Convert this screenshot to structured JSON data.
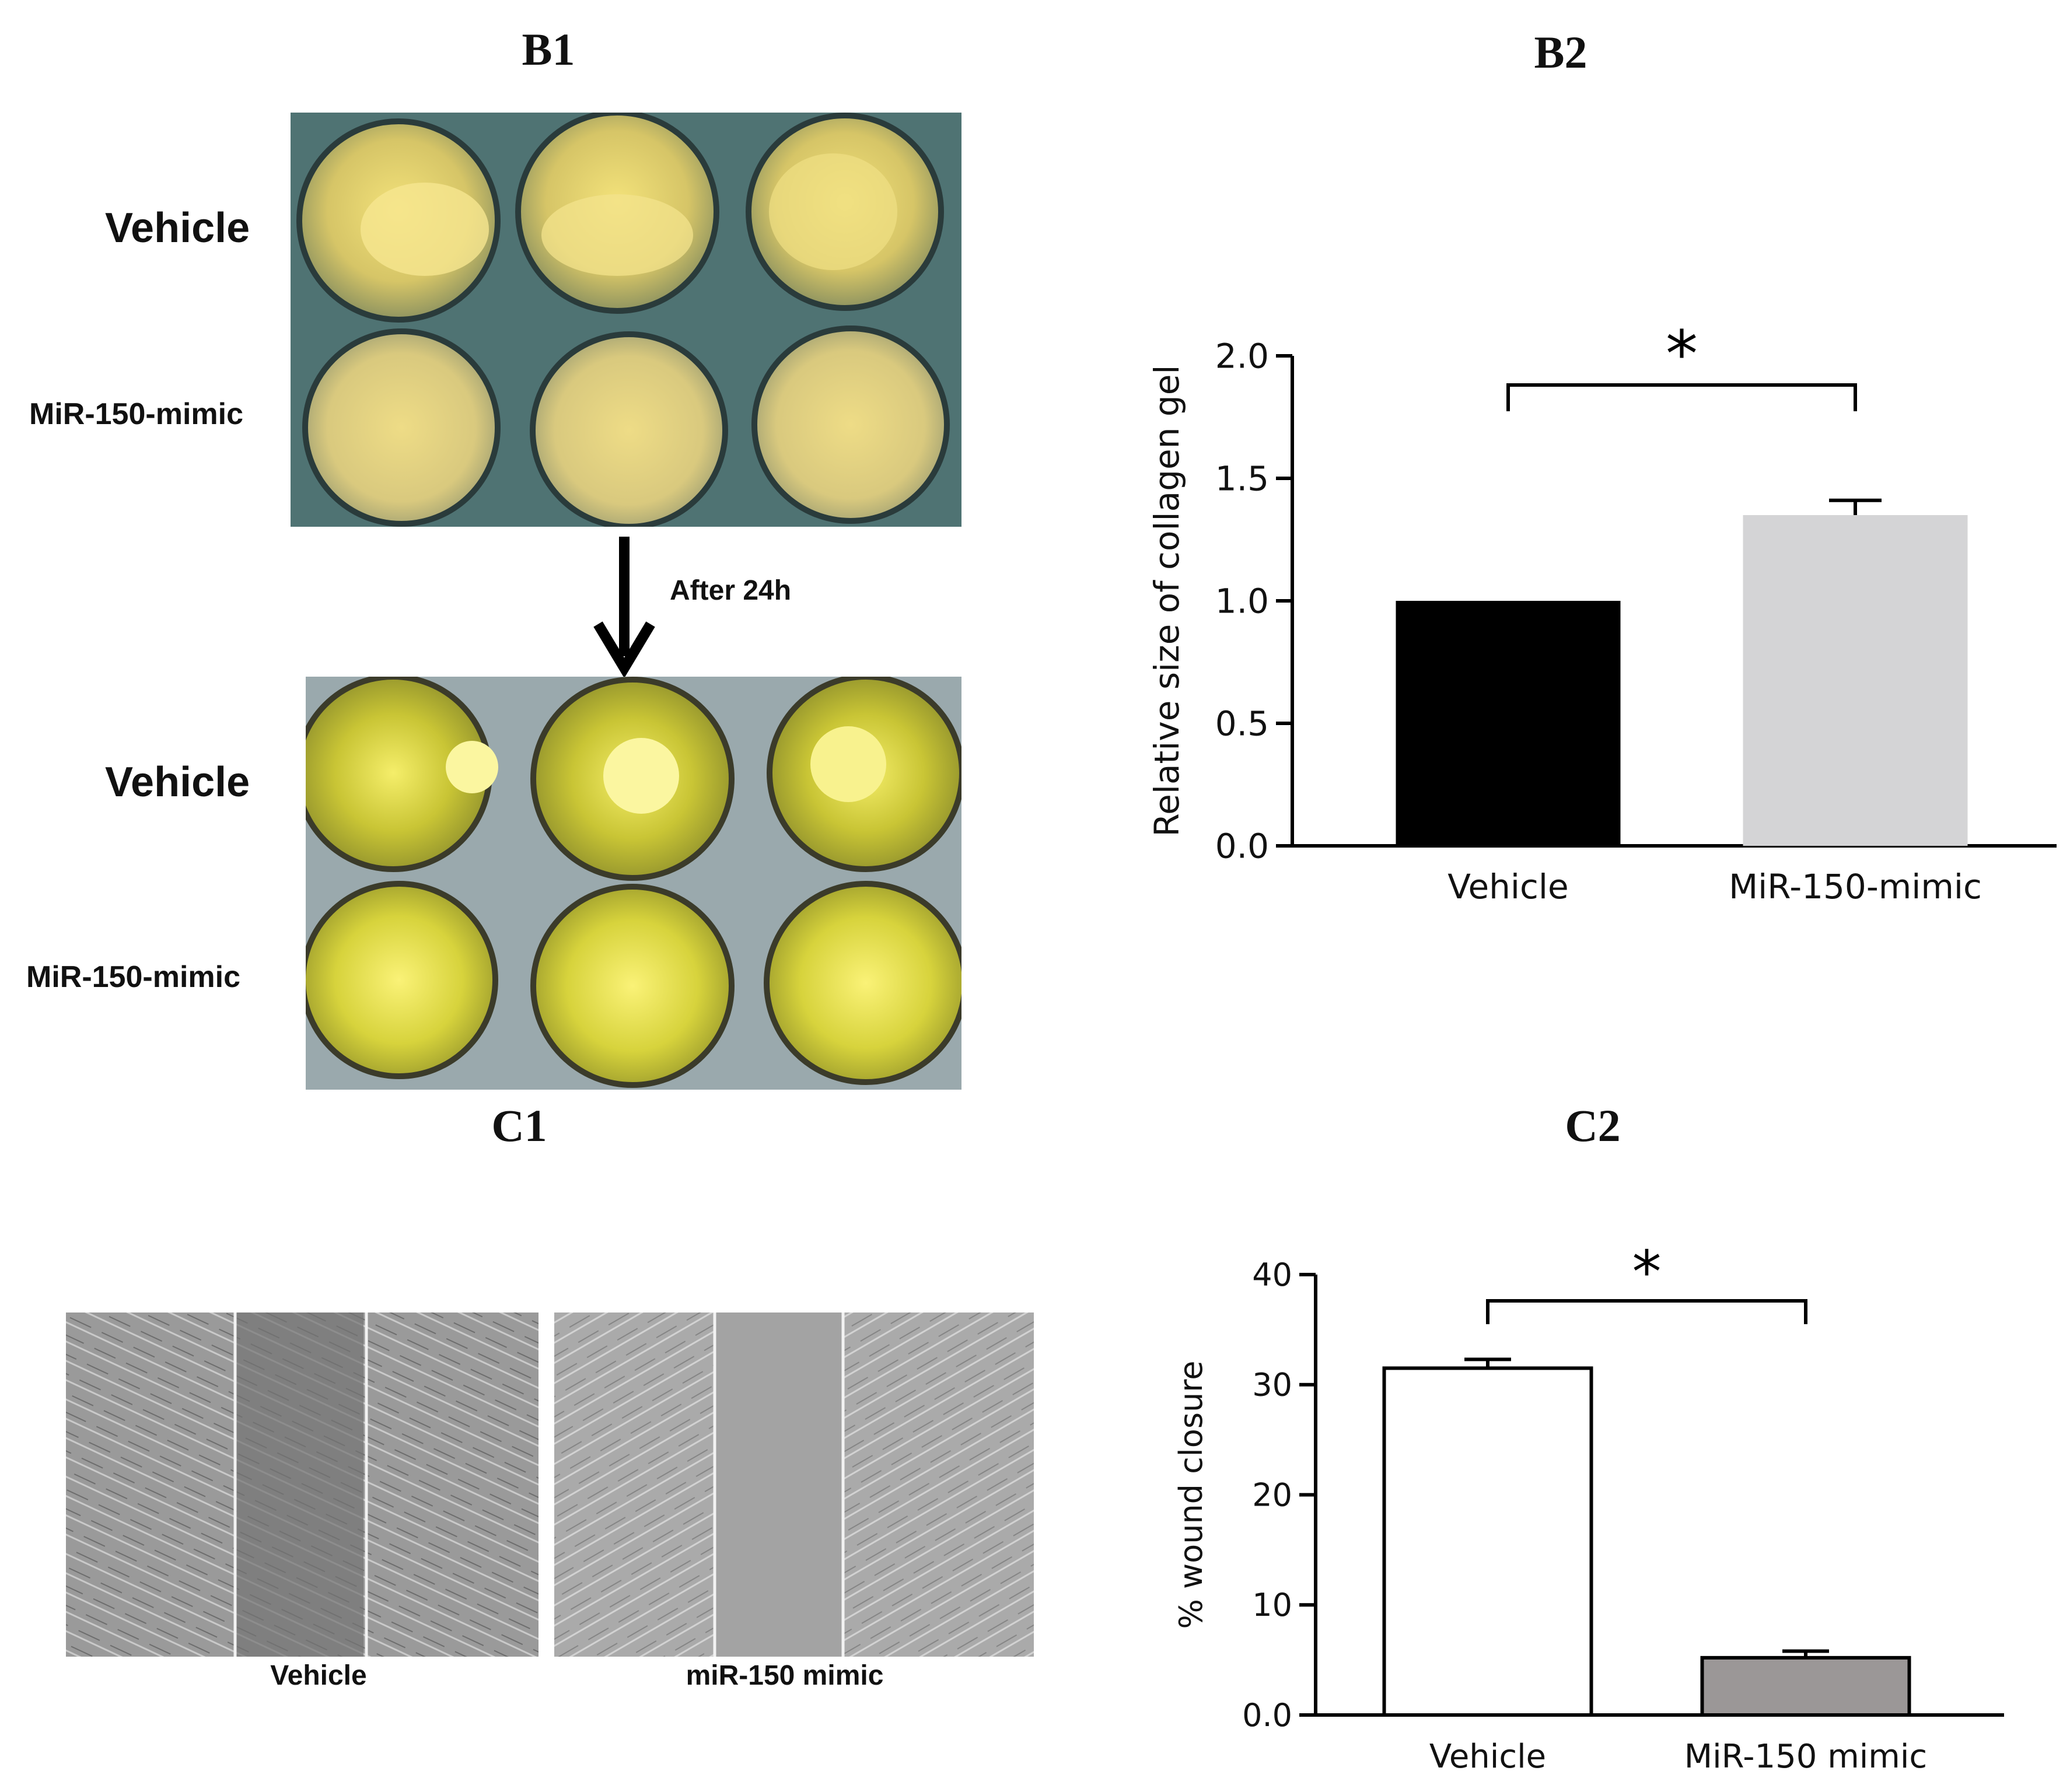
{
  "panels": {
    "b1": {
      "label": "B1",
      "top_row_label": "Vehicle",
      "bottom_row_label": "MiR-150-mimic",
      "arrow_label": "After 24h",
      "after_top_row_label": "Vehicle",
      "after_bottom_row_label": "MiR-150-mimic"
    },
    "b2": {
      "label": "B2"
    },
    "c1": {
      "label": "C1",
      "left_caption": "Vehicle",
      "right_caption": "miR-150 mimic"
    },
    "c2": {
      "label": "C2"
    }
  },
  "chart_data": [
    {
      "id": "b2",
      "type": "bar",
      "categories": [
        "Vehicle",
        "MiR-150-mimic"
      ],
      "values": [
        1.0,
        1.35
      ],
      "errors": [
        0,
        0.06
      ],
      "ylabel": "Relative size of collagen gel",
      "ylim": [
        0,
        2.0
      ],
      "yticks": [
        0.0,
        0.5,
        1.0,
        1.5,
        2.0
      ],
      "ytick_labels": [
        "0.0",
        "0.5",
        "1.0",
        "1.5",
        "2.0"
      ],
      "bar_colors": [
        "#000000",
        "#d4d4d6"
      ],
      "significance": {
        "between": [
          0,
          1
        ],
        "label": "*"
      }
    },
    {
      "id": "c2",
      "type": "bar",
      "categories": [
        "Vehicle",
        "MiR-150 mimic"
      ],
      "values": [
        31.5,
        5.2
      ],
      "errors": [
        0.8,
        0.6
      ],
      "ylabel": "% wound closure",
      "ylim": [
        0,
        40
      ],
      "yticks": [
        0,
        10,
        20,
        30,
        40
      ],
      "ytick_labels": [
        "0.0",
        "10",
        "20",
        "30",
        "40"
      ],
      "bar_colors": [
        "#ffffff",
        "#9b9797"
      ],
      "significance": {
        "between": [
          0,
          1
        ],
        "label": "*"
      }
    }
  ]
}
